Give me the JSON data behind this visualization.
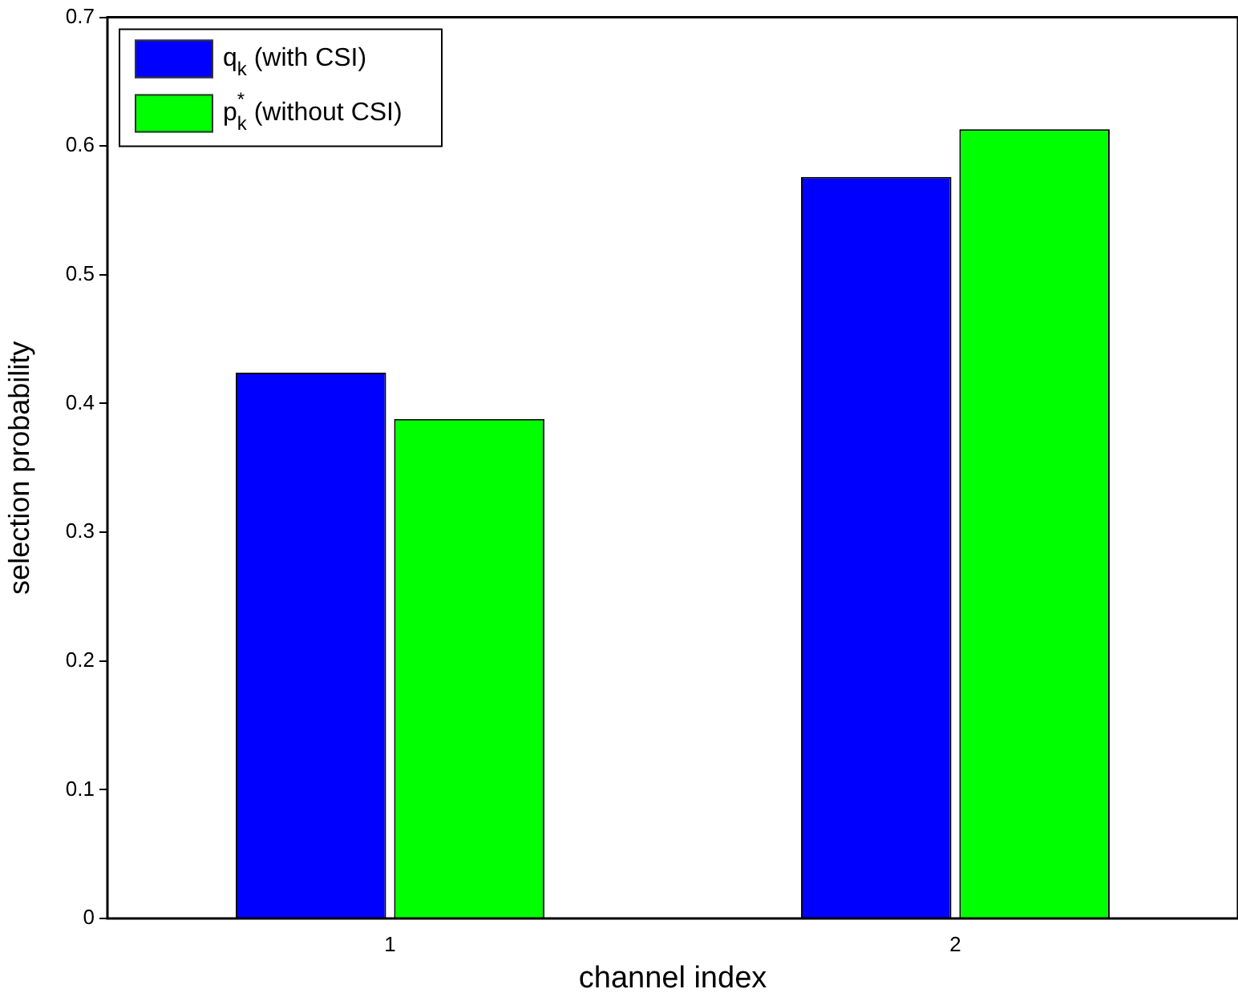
{
  "chart_data": {
    "type": "bar",
    "xlabel": "channel index",
    "ylabel": "selection probability",
    "categories": [
      "1",
      "2"
    ],
    "series": [
      {
        "name": "q$_{k}$ (with CSI)",
        "color": "#0000ff",
        "values": [
          0.424,
          0.576
        ]
      },
      {
        "name": "p$_{k}$$^{*}$ (without CSI)",
        "color": "#00ff00",
        "values": [
          0.388,
          0.613
        ]
      }
    ],
    "ylim": [
      0,
      0.7
    ],
    "yticks": [
      0,
      0.1,
      0.2,
      0.3,
      0.4,
      0.5,
      0.6,
      0.7
    ],
    "grid": false,
    "legend": "top left"
  }
}
